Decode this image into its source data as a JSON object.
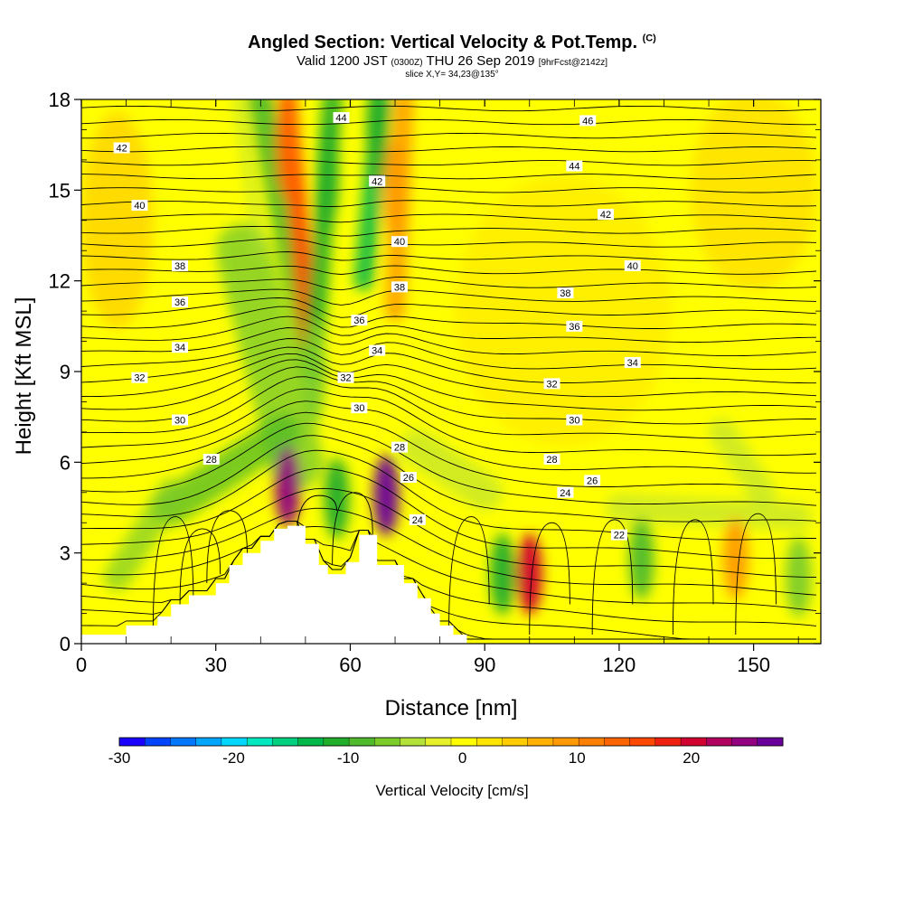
{
  "header": {
    "title": "Angled Section: Vertical Velocity & Pot.Temp.",
    "title_tag": "(C)",
    "valid_prefix": "Valid 1200 JST",
    "valid_zulu": "(0300Z)",
    "valid_date": "THU 26 Sep 2019",
    "forecast_tag": "[9hrFcst@2142z]",
    "slice": "slice X,Y= 34,23@135°"
  },
  "chart_data": {
    "type": "heatmap",
    "xlabel": "Distance [nm]",
    "ylabel": "Height [Kft MSL]",
    "xlim": [
      0,
      165
    ],
    "ylim": [
      0,
      18
    ],
    "x_ticks": [
      0,
      30,
      60,
      90,
      120,
      150
    ],
    "y_ticks": [
      0,
      3,
      6,
      9,
      12,
      15,
      18
    ],
    "colorbar": {
      "title": "Vertical Velocity [cm/s]",
      "range": [
        -30,
        28
      ],
      "tick_values": [
        -30,
        -20,
        -10,
        0,
        10,
        20
      ],
      "tick_labels": [
        "-30",
        "-20",
        "-10",
        "0",
        "10",
        "20"
      ],
      "colors": [
        "#1a00ff",
        "#0044ff",
        "#0077ff",
        "#00a5ff",
        "#00d8ff",
        "#00e8c0",
        "#00d080",
        "#00b84a",
        "#22ad2a",
        "#4fba2a",
        "#7ccc2a",
        "#b4e03a",
        "#e6f02a",
        "#ffff00",
        "#ffe400",
        "#ffcc00",
        "#ffb000",
        "#ff9a00",
        "#ff8000",
        "#ff6400",
        "#ff4800",
        "#f02010",
        "#d00030",
        "#b00060",
        "#900080",
        "#6a009a"
      ]
    },
    "terrain_profile": {
      "x": [
        0,
        10,
        10,
        17,
        17,
        20,
        20,
        24,
        24,
        30,
        30,
        33,
        33,
        36,
        36,
        40,
        40,
        43,
        43,
        46,
        46,
        50,
        50,
        53,
        53,
        55,
        55,
        59,
        59,
        62,
        62,
        66,
        66,
        72,
        72,
        75,
        75,
        78,
        78,
        80,
        80,
        83,
        83,
        86,
        86,
        89,
        89,
        165
      ],
      "y": [
        0.3,
        0.3,
        0.6,
        0.6,
        0.9,
        0.9,
        1.3,
        1.3,
        1.6,
        1.6,
        2.0,
        2.0,
        2.6,
        2.6,
        3.0,
        3.0,
        3.4,
        3.4,
        3.8,
        3.8,
        3.9,
        3.9,
        3.3,
        3.3,
        2.6,
        2.6,
        2.3,
        2.3,
        2.7,
        2.7,
        3.6,
        3.6,
        2.6,
        2.6,
        2.0,
        2.0,
        1.5,
        1.5,
        1.0,
        1.0,
        0.6,
        0.6,
        0.3,
        0.3,
        0.0,
        0.0,
        0.0,
        0.0
      ]
    },
    "vertical_velocity_features": [
      {
        "x": 46,
        "y": 5.2,
        "value": 24
      },
      {
        "x": 68,
        "y": 4.9,
        "value": 26
      },
      {
        "x": 100,
        "y": 2.3,
        "value": 20
      },
      {
        "x": 57,
        "y": 4.8,
        "value": -10
      },
      {
        "x": 94,
        "y": 2.3,
        "value": -10
      },
      {
        "x": 125,
        "y": 2.8,
        "value": -8
      },
      {
        "x": 146,
        "y": 2.8,
        "value": 10
      },
      {
        "x": 160,
        "y": 2.2,
        "value": -6
      },
      {
        "x": 52,
        "y": 9.0,
        "value": -6
      },
      {
        "x": 46,
        "y": 16.5,
        "value": 14
      },
      {
        "x": 55,
        "y": 15.5,
        "value": -10
      },
      {
        "x": 66,
        "y": 17.0,
        "value": -12
      },
      {
        "x": 70,
        "y": 15.0,
        "value": 8
      }
    ],
    "theta_contour_labels": [
      {
        "x": 9,
        "y": 16.4,
        "text": "42"
      },
      {
        "x": 13,
        "y": 14.5,
        "text": "40"
      },
      {
        "x": 22,
        "y": 12.5,
        "text": "38"
      },
      {
        "x": 22,
        "y": 11.3,
        "text": "36"
      },
      {
        "x": 22,
        "y": 9.8,
        "text": "34"
      },
      {
        "x": 13,
        "y": 8.8,
        "text": "32"
      },
      {
        "x": 22,
        "y": 7.4,
        "text": "30"
      },
      {
        "x": 29,
        "y": 6.1,
        "text": "28"
      },
      {
        "x": 58,
        "y": 17.4,
        "text": "44"
      },
      {
        "x": 66,
        "y": 15.3,
        "text": "42"
      },
      {
        "x": 71,
        "y": 13.3,
        "text": "40"
      },
      {
        "x": 71,
        "y": 11.8,
        "text": "38"
      },
      {
        "x": 62,
        "y": 10.7,
        "text": "36"
      },
      {
        "x": 66,
        "y": 9.7,
        "text": "34"
      },
      {
        "x": 59,
        "y": 8.8,
        "text": "32"
      },
      {
        "x": 62,
        "y": 7.8,
        "text": "30"
      },
      {
        "x": 71,
        "y": 6.5,
        "text": "28"
      },
      {
        "x": 73,
        "y": 5.5,
        "text": "26"
      },
      {
        "x": 75,
        "y": 4.1,
        "text": "24"
      },
      {
        "x": 113,
        "y": 17.3,
        "text": "46"
      },
      {
        "x": 110,
        "y": 15.8,
        "text": "44"
      },
      {
        "x": 117,
        "y": 14.2,
        "text": "42"
      },
      {
        "x": 123,
        "y": 12.5,
        "text": "40"
      },
      {
        "x": 108,
        "y": 11.6,
        "text": "38"
      },
      {
        "x": 110,
        "y": 10.5,
        "text": "36"
      },
      {
        "x": 123,
        "y": 9.3,
        "text": "34"
      },
      {
        "x": 105,
        "y": 8.6,
        "text": "32"
      },
      {
        "x": 110,
        "y": 7.4,
        "text": "30"
      },
      {
        "x": 105,
        "y": 6.1,
        "text": "28"
      },
      {
        "x": 114,
        "y": 5.4,
        "text": "26"
      },
      {
        "x": 108,
        "y": 5.0,
        "text": "24"
      },
      {
        "x": 120,
        "y": 3.6,
        "text": "22"
      }
    ]
  }
}
